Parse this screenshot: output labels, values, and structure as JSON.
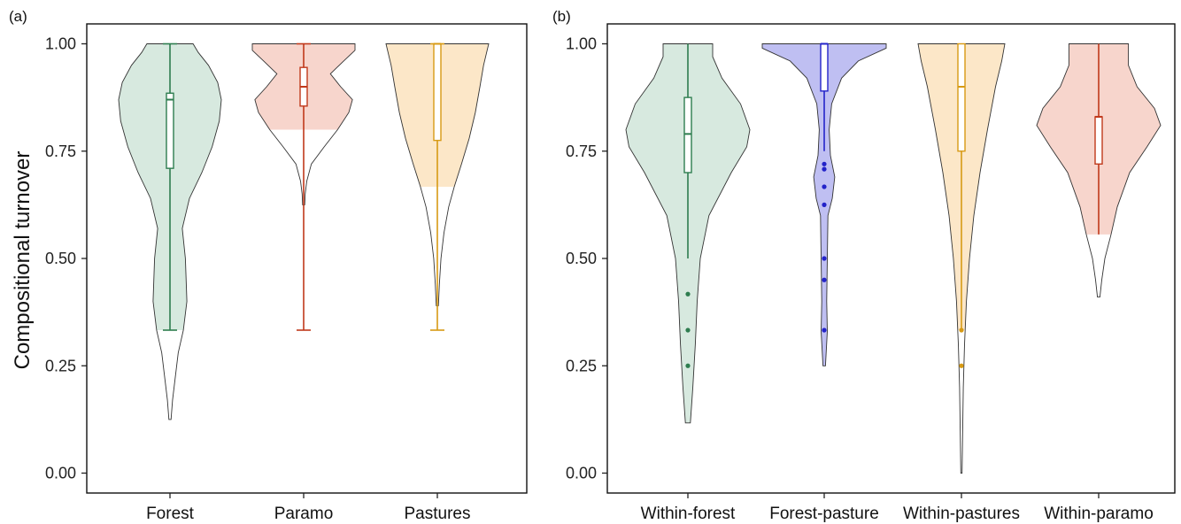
{
  "colors": {
    "green_fill": "#d7e9df",
    "green_line": "#2e7d4f",
    "red_fill": "#f7d5cc",
    "red_line": "#c0391b",
    "orange_fill": "#fce7c8",
    "orange_line": "#d79a14",
    "blue_fill": "#bfbff2",
    "blue_line": "#2323c9"
  },
  "chart_data": [
    {
      "panel": "(a)",
      "type": "violin",
      "ylabel": "Compositional turnover",
      "ylim": [
        0,
        1
      ],
      "yticks": [
        "0.00",
        "0.25",
        "0.50",
        "0.75",
        "1.00"
      ],
      "categories": [
        "Forest",
        "Paramo",
        "Pastures"
      ],
      "series": [
        {
          "category": "Forest",
          "color": "green",
          "box": {
            "whisker_low": 0.333,
            "q1": 0.71,
            "median": 0.87,
            "q3": 0.885,
            "whisker_high": 1.0
          },
          "fill_range": [
            0.333,
            1.0
          ],
          "outliers": [],
          "density": [
            [
              0.125,
              0.02
            ],
            [
              0.17,
              0.05
            ],
            [
              0.22,
              0.1
            ],
            [
              0.28,
              0.16
            ],
            [
              0.333,
              0.26
            ],
            [
              0.4,
              0.33
            ],
            [
              0.5,
              0.3
            ],
            [
              0.57,
              0.24
            ],
            [
              0.64,
              0.38
            ],
            [
              0.7,
              0.62
            ],
            [
              0.76,
              0.82
            ],
            [
              0.82,
              0.96
            ],
            [
              0.87,
              1.0
            ],
            [
              0.91,
              0.93
            ],
            [
              0.95,
              0.75
            ],
            [
              0.98,
              0.55
            ],
            [
              1.0,
              0.45
            ]
          ]
        },
        {
          "category": "Paramo",
          "color": "red",
          "box": {
            "whisker_low": 0.333,
            "q1": 0.855,
            "median": 0.9,
            "q3": 0.945,
            "whisker_high": 1.0
          },
          "fill_range": [
            0.8,
            1.0
          ],
          "outliers": [],
          "density": [
            [
              0.625,
              0.02
            ],
            [
              0.65,
              0.03
            ],
            [
              0.68,
              0.06
            ],
            [
              0.72,
              0.15
            ],
            [
              0.76,
              0.4
            ],
            [
              0.8,
              0.66
            ],
            [
              0.84,
              0.88
            ],
            [
              0.87,
              0.95
            ],
            [
              0.9,
              0.72
            ],
            [
              0.93,
              0.52
            ],
            [
              0.96,
              0.78
            ],
            [
              0.985,
              1.0
            ],
            [
              1.0,
              1.0
            ]
          ]
        },
        {
          "category": "Pastures",
          "color": "orange",
          "box": {
            "whisker_low": 0.333,
            "q1": 0.775,
            "median": 1.0,
            "q3": 1.0,
            "whisker_high": 1.0
          },
          "fill_range": [
            0.667,
            1.0
          ],
          "outliers": [],
          "density": [
            [
              0.39,
              0.02
            ],
            [
              0.44,
              0.04
            ],
            [
              0.5,
              0.07
            ],
            [
              0.56,
              0.13
            ],
            [
              0.62,
              0.22
            ],
            [
              0.667,
              0.33
            ],
            [
              0.72,
              0.47
            ],
            [
              0.78,
              0.62
            ],
            [
              0.84,
              0.74
            ],
            [
              0.9,
              0.83
            ],
            [
              0.95,
              0.9
            ],
            [
              1.0,
              1.0
            ]
          ]
        }
      ]
    },
    {
      "panel": "(b)",
      "type": "violin",
      "ylim": [
        0,
        1
      ],
      "yticks": [
        "0.00",
        "0.25",
        "0.50",
        "0.75",
        "1.00"
      ],
      "categories": [
        "Within-forest",
        "Forest-pasture",
        "Within-pastures",
        "Within-paramo"
      ],
      "series": [
        {
          "category": "Within-forest",
          "color": "green",
          "box": {
            "whisker_low": 0.5,
            "q1": 0.7,
            "median": 0.79,
            "q3": 0.875,
            "whisker_high": 1.0
          },
          "fill_range": [
            0.117,
            1.0
          ],
          "outliers": [
            0.417,
            0.333,
            0.25
          ],
          "density": [
            [
              0.117,
              0.04
            ],
            [
              0.2,
              0.08
            ],
            [
              0.3,
              0.12
            ],
            [
              0.4,
              0.15
            ],
            [
              0.5,
              0.2
            ],
            [
              0.6,
              0.34
            ],
            [
              0.7,
              0.7
            ],
            [
              0.76,
              0.95
            ],
            [
              0.8,
              1.0
            ],
            [
              0.86,
              0.85
            ],
            [
              0.92,
              0.55
            ],
            [
              0.97,
              0.4
            ],
            [
              1.0,
              0.4
            ]
          ]
        },
        {
          "category": "Forest-pasture",
          "color": "blue",
          "box": {
            "whisker_low": 0.75,
            "q1": 0.89,
            "median": 1.0,
            "q3": 1.0,
            "whisker_high": 1.0
          },
          "fill_range": [
            0.25,
            1.0
          ],
          "outliers": [
            0.72,
            0.708,
            0.667,
            0.625,
            0.5,
            0.45,
            0.333
          ],
          "density": [
            [
              0.25,
              0.02
            ],
            [
              0.33,
              0.05
            ],
            [
              0.4,
              0.04
            ],
            [
              0.5,
              0.05
            ],
            [
              0.6,
              0.06
            ],
            [
              0.64,
              0.13
            ],
            [
              0.69,
              0.17
            ],
            [
              0.74,
              0.1
            ],
            [
              0.8,
              0.08
            ],
            [
              0.86,
              0.12
            ],
            [
              0.92,
              0.28
            ],
            [
              0.96,
              0.55
            ],
            [
              0.99,
              1.0
            ],
            [
              1.0,
              1.0
            ]
          ]
        },
        {
          "category": "Within-pastures",
          "color": "orange",
          "box": {
            "whisker_low": 0.333,
            "q1": 0.75,
            "median": 0.9,
            "q3": 1.0,
            "whisker_high": 1.0
          },
          "fill_range": [
            0.333,
            1.0
          ],
          "outliers": [
            0.333,
            0.25
          ],
          "density": [
            [
              0.0,
              0.01
            ],
            [
              0.1,
              0.02
            ],
            [
              0.2,
              0.03
            ],
            [
              0.3,
              0.05
            ],
            [
              0.4,
              0.08
            ],
            [
              0.5,
              0.13
            ],
            [
              0.6,
              0.2
            ],
            [
              0.7,
              0.3
            ],
            [
              0.8,
              0.42
            ],
            [
              0.9,
              0.55
            ],
            [
              0.96,
              0.65
            ],
            [
              1.0,
              0.7
            ]
          ]
        },
        {
          "category": "Within-paramo",
          "color": "red",
          "box": {
            "whisker_low": 0.556,
            "q1": 0.72,
            "median": 0.83,
            "q3": 0.83,
            "whisker_high": 1.0
          },
          "fill_range": [
            0.556,
            1.0
          ],
          "outliers": [],
          "density": [
            [
              0.41,
              0.02
            ],
            [
              0.45,
              0.05
            ],
            [
              0.5,
              0.1
            ],
            [
              0.556,
              0.2
            ],
            [
              0.62,
              0.3
            ],
            [
              0.7,
              0.5
            ],
            [
              0.76,
              0.78
            ],
            [
              0.81,
              1.0
            ],
            [
              0.85,
              0.9
            ],
            [
              0.9,
              0.62
            ],
            [
              0.95,
              0.48
            ],
            [
              1.0,
              0.48
            ]
          ]
        }
      ]
    }
  ]
}
